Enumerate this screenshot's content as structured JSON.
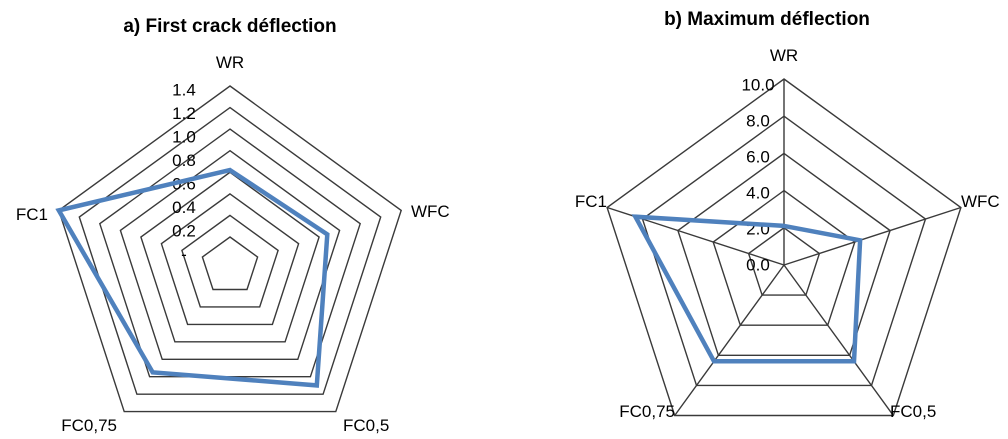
{
  "chart_data": [
    {
      "type": "radar",
      "title": "a) First crack déflection",
      "categories": [
        "WR",
        "WFC",
        "FC0,5",
        "FC0,75",
        "FC1"
      ],
      "tick_labels": [
        "-",
        "0.2",
        "0.4",
        "0.6",
        "0.8",
        "1.0",
        "1.2",
        "1.4"
      ],
      "rlim": [
        0,
        1.4
      ],
      "grid": true,
      "legend": "none",
      "series": [
        {
          "values": [
            0.62,
            0.68,
            1.1,
            0.95,
            1.4
          ],
          "color": "#4f81bd"
        }
      ]
    },
    {
      "type": "radar",
      "title": "b) Maximum déflection",
      "categories": [
        "WR",
        "WFC",
        "FC0,5",
        "FC0,75",
        "FC1"
      ],
      "tick_labels": [
        "0.0",
        "2.0",
        "4.0",
        "6.0",
        "8.0",
        "10.0"
      ],
      "rlim": [
        0,
        10
      ],
      "grid": true,
      "legend": "none",
      "series": [
        {
          "values": [
            2.1,
            4.3,
            6.4,
            6.4,
            8.4
          ],
          "color": "#4f81bd"
        }
      ]
    }
  ]
}
